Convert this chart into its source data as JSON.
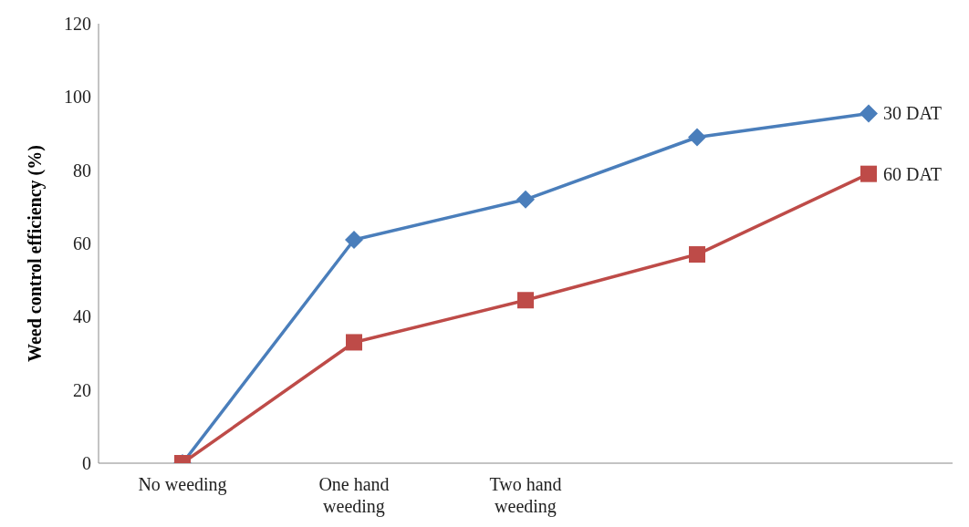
{
  "chart_data": {
    "type": "line",
    "ylabel": "Weed control efficiency (%)",
    "categories": [
      "No weeding",
      "One hand weeding",
      "Two hand weeding",
      null,
      null
    ],
    "series": [
      {
        "name": "30 DAT",
        "color": "#4a7ebb",
        "marker": "diamond",
        "values": [
          0,
          61,
          72,
          89,
          95.5
        ]
      },
      {
        "name": "60 DAT",
        "color": "#be4b48",
        "marker": "square",
        "values": [
          0,
          33,
          44.5,
          57,
          79
        ]
      }
    ],
    "ylim": [
      0,
      120
    ],
    "yticks": [
      0,
      20,
      40,
      60,
      80,
      100,
      120
    ],
    "grid": false,
    "legend": false,
    "line_style": "solid"
  }
}
